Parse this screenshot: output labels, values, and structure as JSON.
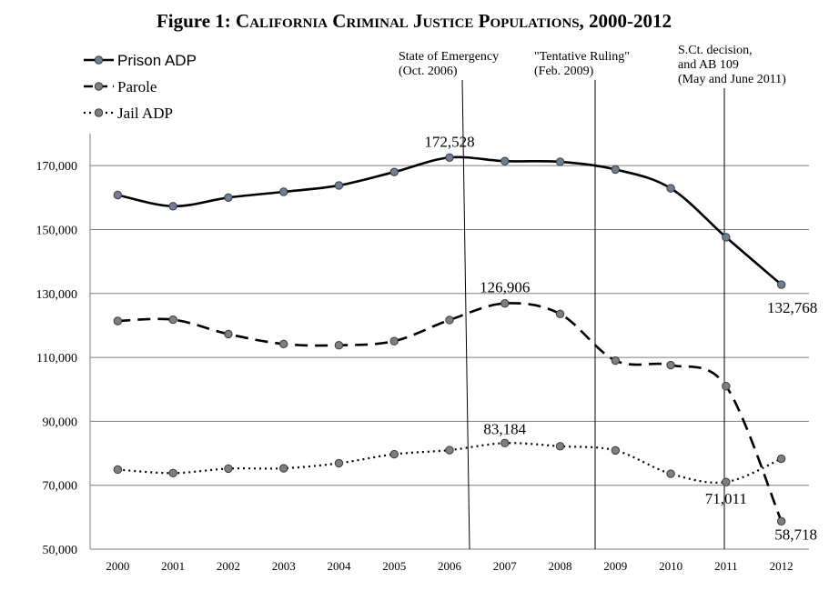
{
  "figure": {
    "title_prefix": "Figure 1:",
    "title_rest": "California Criminal Justice Populations, 2000-2012"
  },
  "colors": {
    "line": "#000000",
    "marker_fill": "#7f7f7f",
    "marker_stroke": "#3a3a3a",
    "prison_marker_fill": "#6d7f95",
    "grid": "#7f7f7f",
    "frame": "#7f7f7f"
  },
  "chart_data": {
    "type": "line",
    "title": "Figure 1: California Criminal Justice Populations, 2000-2012",
    "xlabel": "",
    "ylabel": "",
    "x": [
      "2000",
      "2001",
      "2002",
      "2003",
      "2004",
      "2005",
      "2006",
      "2007",
      "2008",
      "2009",
      "2010",
      "2011",
      "2012"
    ],
    "ylim": [
      50000,
      180000
    ],
    "yticks": [
      50000,
      70000,
      90000,
      110000,
      130000,
      150000,
      170000
    ],
    "ytick_labels": [
      "50,000",
      "70,000",
      "90,000",
      "110,000",
      "130,000",
      "150,000",
      "170,000"
    ],
    "grid": true,
    "legend_position": "top-left",
    "series": [
      {
        "name": "Prison ADP",
        "style": "solid",
        "values": [
          160800,
          157300,
          160000,
          161800,
          163800,
          168000,
          172528,
          171400,
          171200,
          168800,
          162900,
          147600,
          132768
        ]
      },
      {
        "name": "Parole",
        "style": "dashed",
        "values": [
          121400,
          121800,
          117300,
          114200,
          113800,
          115100,
          121700,
          126906,
          123600,
          109000,
          107600,
          101000,
          58718
        ]
      },
      {
        "name": "Jail ADP",
        "style": "dotted",
        "values": [
          74900,
          73800,
          75200,
          75300,
          76900,
          79700,
          81000,
          83184,
          82200,
          80900,
          73600,
          71011,
          78300
        ]
      }
    ],
    "annotations": [
      {
        "text": "172,528",
        "series": 0,
        "x": "2006"
      },
      {
        "text": "132,768",
        "series": 0,
        "x": "2012"
      },
      {
        "text": "126,906",
        "series": 1,
        "x": "2007"
      },
      {
        "text": "58,718",
        "series": 1,
        "x": "2012"
      },
      {
        "text": "83,184",
        "series": 2,
        "x": "2007"
      },
      {
        "text": "71,011",
        "series": 2,
        "x": "2011"
      }
    ],
    "events": [
      {
        "lines": [
          "State of Emergency",
          "(Oct. 2006)"
        ]
      },
      {
        "lines": [
          "\"Tentative  Ruling\"",
          "(Feb. 2009)"
        ]
      },
      {
        "lines": [
          "S.Ct. decision,",
          "and AB 109",
          "(May and June 2011)"
        ]
      }
    ]
  }
}
